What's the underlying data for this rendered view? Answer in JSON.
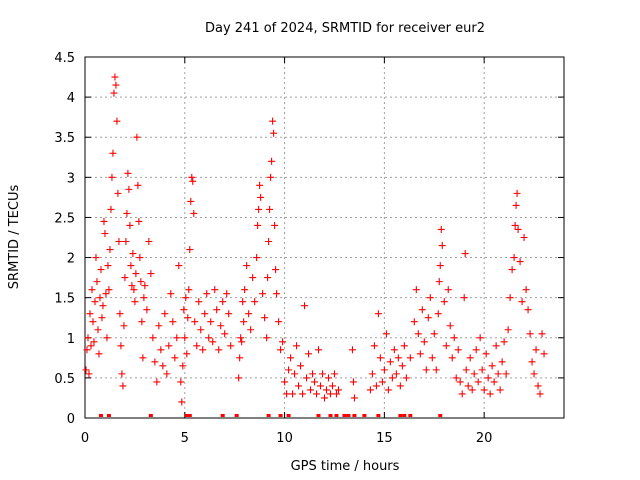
{
  "chart_data": {
    "type": "scatter",
    "title": "Day 241 of 2024, SRMTID for receiver eur2",
    "xlabel": "GPS time / hours",
    "ylabel": "SRMTID / TECUs",
    "xlim": [
      0,
      24
    ],
    "ylim": [
      0,
      4.5
    ],
    "xticks": [
      0,
      5,
      10,
      15,
      20
    ],
    "xtick_labels": [
      "0",
      "5",
      "10",
      "15",
      "20"
    ],
    "yticks": [
      0,
      0.5,
      1,
      1.5,
      2,
      2.5,
      3,
      3.5,
      4,
      4.5
    ],
    "ytick_labels": [
      "0",
      "0.5",
      "1",
      "1.5",
      "2",
      "2.5",
      "3",
      "3.5",
      "4",
      "4.5"
    ],
    "grid": true,
    "marker": "plus",
    "series": [
      {
        "name": "SRMTID",
        "color": "#ff0000",
        "points": [
          [
            0.05,
            0.6
          ],
          [
            0.1,
            0.85
          ],
          [
            0.15,
            1.0
          ],
          [
            0.2,
            0.55
          ],
          [
            0.25,
            1.3
          ],
          [
            0.3,
            0.9
          ],
          [
            0.35,
            1.6
          ],
          [
            0.4,
            1.2
          ],
          [
            0.45,
            0.95
          ],
          [
            0.5,
            1.45
          ],
          [
            0.55,
            2.0
          ],
          [
            0.6,
            1.7
          ],
          [
            0.65,
            1.1
          ],
          [
            0.7,
            0.8
          ],
          [
            0.75,
            1.5
          ],
          [
            0.8,
            1.85
          ],
          [
            0.85,
            1.25
          ],
          [
            0.9,
            1.4
          ],
          [
            0.95,
            2.45
          ],
          [
            1.0,
            2.3
          ],
          [
            1.05,
            1.55
          ],
          [
            1.1,
            1.0
          ],
          [
            1.15,
            1.9
          ],
          [
            1.2,
            1.6
          ],
          [
            1.25,
            2.1
          ],
          [
            1.3,
            2.6
          ],
          [
            1.35,
            3.0
          ],
          [
            1.4,
            3.3
          ],
          [
            1.45,
            4.05
          ],
          [
            1.5,
            4.25
          ],
          [
            1.55,
            4.15
          ],
          [
            1.6,
            3.7
          ],
          [
            1.65,
            2.8
          ],
          [
            1.7,
            2.2
          ],
          [
            1.75,
            1.3
          ],
          [
            1.8,
            0.9
          ],
          [
            1.85,
            0.55
          ],
          [
            1.9,
            0.4
          ],
          [
            1.95,
            1.15
          ],
          [
            2.0,
            1.75
          ],
          [
            2.05,
            2.2
          ],
          [
            2.1,
            2.55
          ],
          [
            2.15,
            3.05
          ],
          [
            2.2,
            2.85
          ],
          [
            2.25,
            2.4
          ],
          [
            2.3,
            1.9
          ],
          [
            2.35,
            1.65
          ],
          [
            2.4,
            2.05
          ],
          [
            2.45,
            1.6
          ],
          [
            2.5,
            1.45
          ],
          [
            2.55,
            1.8
          ],
          [
            2.6,
            3.5
          ],
          [
            2.65,
            2.9
          ],
          [
            2.7,
            2.45
          ],
          [
            2.75,
            2.0
          ],
          [
            2.8,
            1.7
          ],
          [
            2.85,
            1.2
          ],
          [
            2.9,
            0.75
          ],
          [
            2.95,
            1.5
          ],
          [
            3.0,
            1.65
          ],
          [
            3.1,
            1.35
          ],
          [
            3.2,
            2.2
          ],
          [
            3.3,
            1.8
          ],
          [
            3.4,
            1.0
          ],
          [
            3.5,
            0.7
          ],
          [
            3.6,
            0.45
          ],
          [
            3.7,
            1.15
          ],
          [
            3.8,
            0.85
          ],
          [
            3.9,
            0.65
          ],
          [
            4.0,
            1.3
          ],
          [
            4.1,
            0.55
          ],
          [
            4.2,
            0.9
          ],
          [
            4.3,
            1.55
          ],
          [
            4.4,
            1.2
          ],
          [
            4.5,
            0.75
          ],
          [
            4.6,
            1.0
          ],
          [
            4.7,
            1.9
          ],
          [
            4.8,
            0.45
          ],
          [
            4.85,
            0.2
          ],
          [
            4.9,
            0.65
          ],
          [
            4.95,
            1.35
          ],
          [
            5.0,
            1.0
          ],
          [
            5.05,
            1.5
          ],
          [
            5.1,
            0.8
          ],
          [
            5.15,
            1.25
          ],
          [
            5.2,
            1.6
          ],
          [
            5.25,
            2.1
          ],
          [
            5.3,
            2.7
          ],
          [
            5.35,
            3.0
          ],
          [
            5.4,
            2.95
          ],
          [
            5.45,
            2.55
          ],
          [
            5.5,
            1.2
          ],
          [
            5.6,
            0.9
          ],
          [
            5.7,
            1.45
          ],
          [
            5.8,
            1.1
          ],
          [
            5.9,
            0.85
          ],
          [
            6.0,
            1.3
          ],
          [
            6.1,
            1.55
          ],
          [
            6.2,
            1.0
          ],
          [
            6.3,
            1.2
          ],
          [
            6.4,
            0.95
          ],
          [
            6.5,
            1.6
          ],
          [
            6.6,
            1.35
          ],
          [
            6.7,
            0.85
          ],
          [
            6.8,
            1.15
          ],
          [
            6.9,
            1.45
          ],
          [
            7.0,
            1.05
          ],
          [
            7.1,
            1.55
          ],
          [
            7.2,
            1.3
          ],
          [
            7.3,
            0.9
          ],
          [
            7.7,
            0.5
          ],
          [
            7.75,
            0.75
          ],
          [
            7.8,
            1.0
          ],
          [
            7.85,
            0.95
          ],
          [
            7.9,
            1.45
          ],
          [
            7.95,
            1.2
          ],
          [
            8.0,
            1.6
          ],
          [
            8.1,
            1.9
          ],
          [
            8.2,
            1.3
          ],
          [
            8.3,
            1.1
          ],
          [
            8.4,
            1.75
          ],
          [
            8.5,
            1.45
          ],
          [
            8.6,
            2.0
          ],
          [
            8.65,
            2.4
          ],
          [
            8.7,
            2.6
          ],
          [
            8.75,
            2.9
          ],
          [
            8.8,
            2.75
          ],
          [
            8.9,
            1.55
          ],
          [
            9.0,
            1.25
          ],
          [
            9.1,
            1.0
          ],
          [
            9.15,
            1.75
          ],
          [
            9.2,
            2.2
          ],
          [
            9.25,
            2.6
          ],
          [
            9.3,
            3.0
          ],
          [
            9.35,
            3.2
          ],
          [
            9.4,
            3.7
          ],
          [
            9.45,
            3.55
          ],
          [
            9.5,
            2.4
          ],
          [
            9.55,
            1.85
          ],
          [
            9.6,
            1.55
          ],
          [
            9.7,
            1.2
          ],
          [
            9.8,
            0.85
          ],
          [
            9.9,
            0.95
          ],
          [
            10.0,
            0.45
          ],
          [
            10.1,
            0.3
          ],
          [
            10.2,
            0.6
          ],
          [
            10.3,
            0.75
          ],
          [
            10.4,
            0.3
          ],
          [
            10.5,
            0.55
          ],
          [
            10.6,
            0.9
          ],
          [
            10.7,
            0.4
          ],
          [
            10.8,
            0.65
          ],
          [
            10.9,
            0.3
          ],
          [
            11.0,
            1.4
          ],
          [
            11.1,
            0.5
          ],
          [
            11.2,
            0.8
          ],
          [
            11.3,
            0.35
          ],
          [
            11.4,
            0.55
          ],
          [
            11.5,
            0.45
          ],
          [
            11.6,
            0.3
          ],
          [
            11.7,
            0.85
          ],
          [
            11.8,
            0.4
          ],
          [
            11.9,
            0.55
          ],
          [
            12.0,
            0.25
          ],
          [
            12.1,
            0.35
          ],
          [
            12.2,
            0.5
          ],
          [
            12.3,
            0.3
          ],
          [
            12.4,
            0.4
          ],
          [
            12.5,
            0.55
          ],
          [
            12.6,
            0.3
          ],
          [
            12.7,
            0.35
          ],
          [
            13.4,
            0.85
          ],
          [
            13.45,
            0.45
          ],
          [
            13.5,
            0.25
          ],
          [
            14.3,
            0.35
          ],
          [
            14.4,
            0.55
          ],
          [
            14.5,
            0.9
          ],
          [
            14.6,
            0.4
          ],
          [
            14.7,
            1.3
          ],
          [
            14.8,
            0.75
          ],
          [
            14.9,
            0.45
          ],
          [
            15.0,
            0.6
          ],
          [
            15.1,
            1.05
          ],
          [
            15.2,
            0.35
          ],
          [
            15.3,
            0.7
          ],
          [
            15.4,
            0.5
          ],
          [
            15.5,
            0.85
          ],
          [
            15.6,
            0.55
          ],
          [
            15.7,
            0.75
          ],
          [
            15.8,
            0.4
          ],
          [
            15.9,
            0.65
          ],
          [
            16.0,
            0.9
          ],
          [
            16.1,
            0.5
          ],
          [
            16.3,
            0.75
          ],
          [
            16.5,
            1.2
          ],
          [
            16.6,
            1.6
          ],
          [
            16.7,
            1.05
          ],
          [
            16.8,
            0.8
          ],
          [
            16.9,
            1.35
          ],
          [
            17.0,
            0.95
          ],
          [
            17.1,
            0.6
          ],
          [
            17.2,
            1.25
          ],
          [
            17.3,
            1.5
          ],
          [
            17.4,
            0.75
          ],
          [
            17.5,
            1.05
          ],
          [
            17.6,
            0.6
          ],
          [
            17.7,
            1.3
          ],
          [
            17.75,
            1.7
          ],
          [
            17.8,
            1.9
          ],
          [
            17.85,
            2.35
          ],
          [
            17.9,
            2.15
          ],
          [
            18.0,
            1.45
          ],
          [
            18.1,
            0.9
          ],
          [
            18.2,
            1.6
          ],
          [
            18.3,
            1.15
          ],
          [
            18.4,
            0.75
          ],
          [
            18.5,
            1.0
          ],
          [
            18.6,
            0.5
          ],
          [
            18.7,
            0.85
          ],
          [
            18.8,
            0.45
          ],
          [
            18.9,
            0.3
          ],
          [
            19.0,
            1.5
          ],
          [
            19.05,
            2.05
          ],
          [
            19.1,
            0.6
          ],
          [
            19.2,
            0.4
          ],
          [
            19.3,
            0.75
          ],
          [
            19.4,
            0.35
          ],
          [
            19.5,
            0.55
          ],
          [
            19.6,
            0.85
          ],
          [
            19.7,
            0.45
          ],
          [
            19.8,
            1.0
          ],
          [
            19.9,
            0.6
          ],
          [
            20.0,
            0.35
          ],
          [
            20.1,
            0.8
          ],
          [
            20.2,
            0.5
          ],
          [
            20.3,
            0.3
          ],
          [
            20.4,
            0.65
          ],
          [
            20.5,
            0.45
          ],
          [
            20.6,
            0.9
          ],
          [
            20.7,
            0.55
          ],
          [
            20.8,
            0.35
          ],
          [
            20.9,
            0.7
          ],
          [
            21.0,
            0.95
          ],
          [
            21.1,
            0.55
          ],
          [
            21.2,
            1.1
          ],
          [
            21.3,
            1.5
          ],
          [
            21.4,
            1.85
          ],
          [
            21.5,
            2.0
          ],
          [
            21.55,
            2.4
          ],
          [
            21.6,
            2.65
          ],
          [
            21.65,
            2.8
          ],
          [
            21.7,
            2.35
          ],
          [
            21.8,
            1.95
          ],
          [
            21.9,
            1.45
          ],
          [
            22.0,
            2.25
          ],
          [
            22.1,
            1.6
          ],
          [
            22.2,
            1.35
          ],
          [
            22.3,
            1.05
          ],
          [
            22.4,
            0.7
          ],
          [
            22.5,
            0.55
          ],
          [
            22.6,
            0.85
          ],
          [
            22.7,
            0.4
          ],
          [
            22.8,
            0.3
          ],
          [
            22.9,
            1.05
          ],
          [
            23.0,
            0.8
          ]
        ]
      }
    ],
    "flag_series": {
      "name": "flags",
      "color": "#ff0000",
      "y": 0,
      "x": [
        0.8,
        1.2,
        3.3,
        5.1,
        5.25,
        6.9,
        7.6,
        9.2,
        9.8,
        10.2,
        11.7,
        12.3,
        12.6,
        13.0,
        13.2,
        13.5,
        14.0,
        14.7,
        15.8,
        16.0,
        16.3,
        17.8
      ]
    }
  }
}
